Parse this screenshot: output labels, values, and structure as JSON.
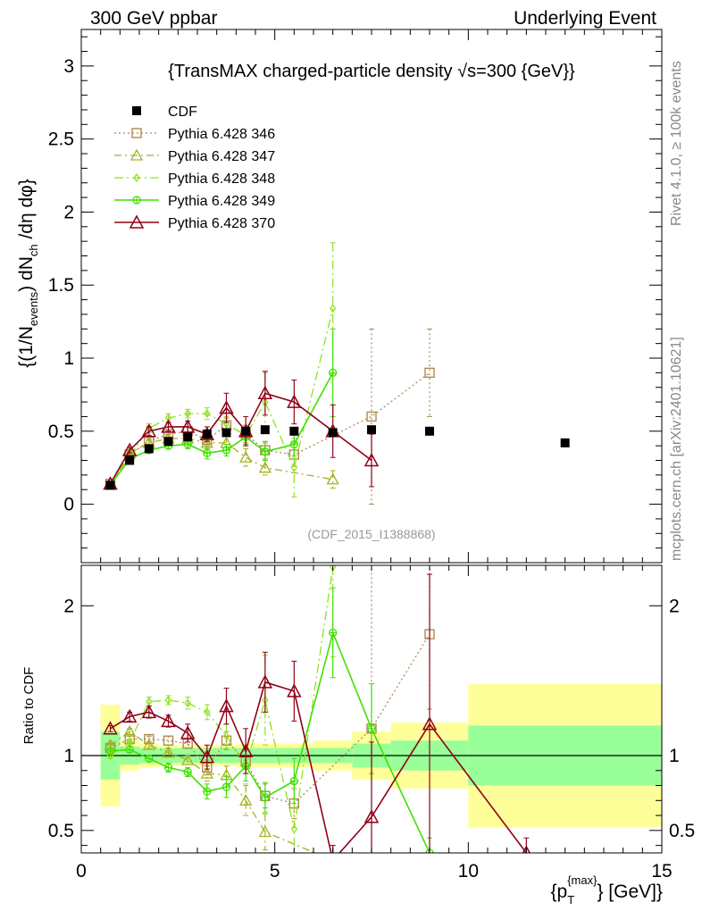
{
  "header": {
    "left": "300 GeV ppbar",
    "right": "Underlying Event",
    "side_top": "Rivet 4.1.0, ≥ 100k events",
    "side_bottom": "mcplots.cern.ch [arXiv:2401.10621]"
  },
  "colors": {
    "cdf": "#000000",
    "p346": "#b08850",
    "p347": "#a8b020",
    "p348": "#90e020",
    "p349": "#40e000",
    "p370": "#900018",
    "band_yellow": "#ffff99",
    "band_green": "#99ff99"
  },
  "chart_data": [
    {
      "type": "scatter",
      "panel": "main",
      "title": "{TransMAX charged-particle density √s=300 {GeV}}",
      "ylabel": "{(1/N_events) dN_ch /dη dφ}",
      "ylabel_parts": [
        "{(1/N",
        "events",
        ") dN",
        "ch",
        " /dη dφ}"
      ],
      "xlim": [
        0,
        15
      ],
      "ylim": [
        -0.4,
        3.25
      ],
      "yticks": [
        0,
        0.5,
        1,
        1.5,
        2,
        2.5,
        3
      ],
      "ytick_labels": [
        "0",
        "0.5",
        "1",
        "1.5",
        "2",
        "2.5",
        "3"
      ],
      "reference_label": "(CDF_2015_I1388868)",
      "legend": [
        "CDF",
        "Pythia 6.428 346",
        "Pythia 6.428 347",
        "Pythia 6.428 348",
        "Pythia 6.428 349",
        "Pythia 6.428 370"
      ],
      "series": [
        {
          "name": "CDF",
          "x": [
            0.75,
            1.25,
            1.75,
            2.25,
            2.75,
            3.25,
            3.75,
            4.25,
            4.75,
            5.5,
            6.5,
            7.5,
            9.0,
            12.5
          ],
          "y": [
            0.13,
            0.3,
            0.38,
            0.43,
            0.46,
            0.48,
            0.49,
            0.5,
            0.51,
            0.5,
            0.49,
            0.51,
            0.5,
            0.42
          ]
        },
        {
          "name": "Pythia 6.428 346",
          "x": [
            0.75,
            1.25,
            1.75,
            2.25,
            2.75,
            3.25,
            3.75,
            4.25,
            4.75,
            5.5,
            7.5,
            9.0
          ],
          "y": [
            0.14,
            0.34,
            0.43,
            0.48,
            0.5,
            0.44,
            0.54,
            0.48,
            0.37,
            0.34,
            0.6,
            0.9
          ],
          "err": [
            0.01,
            0.02,
            0.02,
            0.03,
            0.03,
            0.04,
            0.05,
            0.06,
            0.06,
            0.08,
            0.6,
            0.3
          ]
        },
        {
          "name": "Pythia 6.428 347",
          "x": [
            0.75,
            1.25,
            1.75,
            2.25,
            2.75,
            3.25,
            3.75,
            4.25,
            4.75,
            6.5
          ],
          "y": [
            0.14,
            0.35,
            0.42,
            0.45,
            0.45,
            0.42,
            0.42,
            0.32,
            0.25,
            0.17
          ],
          "err": [
            0.01,
            0.02,
            0.02,
            0.03,
            0.03,
            0.04,
            0.05,
            0.06,
            0.05,
            0.06
          ]
        },
        {
          "name": "Pythia 6.428 348",
          "x": [
            0.75,
            1.25,
            1.75,
            2.25,
            2.75,
            3.25,
            3.75,
            4.25,
            4.75,
            5.5,
            6.5
          ],
          "y": [
            0.13,
            0.33,
            0.52,
            0.59,
            0.62,
            0.62,
            0.55,
            0.47,
            0.7,
            0.25,
            1.34
          ],
          "err": [
            0.01,
            0.02,
            0.03,
            0.03,
            0.03,
            0.04,
            0.05,
            0.07,
            0.2,
            0.2,
            0.45
          ]
        },
        {
          "name": "Pythia 6.428 349",
          "x": [
            0.75,
            1.25,
            1.75,
            2.25,
            2.75,
            3.25,
            3.75,
            4.25,
            4.75,
            5.5,
            6.5
          ],
          "y": [
            0.13,
            0.31,
            0.37,
            0.4,
            0.41,
            0.35,
            0.37,
            0.46,
            0.36,
            0.41,
            0.9
          ],
          "err": [
            0.01,
            0.02,
            0.02,
            0.02,
            0.03,
            0.04,
            0.04,
            0.05,
            0.06,
            0.08,
            0.3
          ]
        },
        {
          "name": "Pythia 6.428 370",
          "x": [
            0.75,
            1.25,
            1.75,
            2.25,
            2.75,
            3.25,
            3.75,
            4.25,
            4.75,
            5.5,
            6.5,
            7.5
          ],
          "y": [
            0.14,
            0.37,
            0.5,
            0.53,
            0.53,
            0.48,
            0.66,
            0.5,
            0.76,
            0.7,
            0.5,
            0.3
          ],
          "err": [
            0.01,
            0.02,
            0.03,
            0.03,
            0.04,
            0.05,
            0.1,
            0.1,
            0.15,
            0.15,
            0.18,
            0.18
          ]
        }
      ]
    },
    {
      "type": "scatter",
      "panel": "ratio",
      "ylabel": "Ratio to CDF",
      "xlabel": "{p_T^{max}} [GeV]",
      "xlabel_parts": [
        "{p",
        "T",
        "{max}",
        "} [GeV]}"
      ],
      "xlim": [
        0,
        15
      ],
      "ylim": [
        0.35,
        2.27
      ],
      "xticks": [
        0,
        5,
        10,
        15
      ],
      "xtick_labels": [
        "0",
        "5",
        "10",
        "15"
      ],
      "yticks": [
        0.5,
        1,
        2
      ],
      "ytick_labels": [
        "0.5",
        "1",
        "2"
      ],
      "cdf_bins": [
        [
          0.5,
          1.0
        ],
        [
          1.0,
          1.5
        ],
        [
          1.5,
          2.0
        ],
        [
          2.0,
          2.5
        ],
        [
          2.5,
          3.0
        ],
        [
          3.0,
          3.5
        ],
        [
          3.5,
          4.0
        ],
        [
          4.0,
          4.5
        ],
        [
          4.5,
          5.0
        ],
        [
          5.0,
          6.0
        ],
        [
          6.0,
          7.0
        ],
        [
          7.0,
          8.0
        ],
        [
          8.0,
          10.0
        ],
        [
          10.0,
          15.0
        ]
      ],
      "stat_band": [
        0.16,
        0.06,
        0.05,
        0.05,
        0.05,
        0.05,
        0.05,
        0.05,
        0.05,
        0.05,
        0.05,
        0.08,
        0.1,
        0.2
      ],
      "total_band": [
        0.34,
        0.1,
        0.08,
        0.07,
        0.07,
        0.07,
        0.07,
        0.08,
        0.08,
        0.08,
        0.1,
        0.16,
        0.22,
        0.48
      ],
      "series": [
        {
          "name": "Pythia 6.428 346",
          "x": [
            0.75,
            1.25,
            1.75,
            2.25,
            2.75,
            3.25,
            3.75,
            4.25,
            4.75,
            5.5,
            7.5,
            9.0
          ],
          "y": [
            1.05,
            1.11,
            1.11,
            1.1,
            1.08,
            0.92,
            1.1,
            0.96,
            0.73,
            0.68,
            1.18,
            1.81
          ],
          "err": [
            0.02,
            0.02,
            0.02,
            0.03,
            0.03,
            0.05,
            0.06,
            0.08,
            0.08,
            0.1,
            1.1,
            0.5
          ]
        },
        {
          "name": "Pythia 6.428 347",
          "x": [
            0.75,
            1.25,
            1.75,
            2.25,
            2.75,
            3.25,
            3.75,
            4.25,
            4.75,
            6.5
          ],
          "y": [
            1.07,
            1.16,
            1.07,
            1.02,
            0.97,
            0.88,
            0.87,
            0.7,
            0.49,
            0.3
          ],
          "err": [
            0.02,
            0.02,
            0.02,
            0.03,
            0.03,
            0.05,
            0.06,
            0.1,
            0.12,
            0.1
          ]
        },
        {
          "name": "Pythia 6.428 348",
          "x": [
            0.75,
            1.25,
            1.75,
            2.25,
            2.75,
            3.25,
            3.75,
            4.25,
            4.75,
            5.5,
            6.5
          ],
          "y": [
            1.0,
            1.09,
            1.36,
            1.37,
            1.35,
            1.29,
            1.13,
            0.93,
            1.37,
            0.51,
            2.26
          ],
          "err": [
            0.02,
            0.02,
            0.03,
            0.03,
            0.04,
            0.05,
            0.08,
            0.12,
            0.3,
            0.3,
            0.6
          ]
        },
        {
          "name": "Pythia 6.428 349",
          "x": [
            0.75,
            1.25,
            1.75,
            2.25,
            2.75,
            3.25,
            3.75,
            4.25,
            4.75,
            5.5,
            6.5,
            7.5,
            9.0
          ],
          "y": [
            1.03,
            1.04,
            0.98,
            0.92,
            0.89,
            0.76,
            0.79,
            0.93,
            0.72,
            0.83,
            1.82,
            1.18,
            0.35
          ],
          "err": [
            0.02,
            0.02,
            0.02,
            0.03,
            0.03,
            0.05,
            0.07,
            0.1,
            0.1,
            0.15,
            0.3,
            0.3,
            0.1
          ]
        },
        {
          "name": "Pythia 6.428 370",
          "x": [
            0.75,
            1.25,
            1.75,
            2.25,
            2.75,
            3.25,
            3.75,
            4.25,
            4.75,
            5.5,
            6.5,
            7.5,
            9.0,
            11.5
          ],
          "y": [
            1.18,
            1.26,
            1.29,
            1.23,
            1.15,
            0.99,
            1.33,
            1.03,
            1.49,
            1.43,
            0.3,
            0.59,
            1.21,
            0.35
          ],
          "err": [
            0.02,
            0.03,
            0.04,
            0.04,
            0.06,
            0.08,
            0.12,
            0.15,
            0.2,
            0.2,
            0.1,
            0.5,
            1.0,
            0.1
          ]
        }
      ]
    }
  ]
}
